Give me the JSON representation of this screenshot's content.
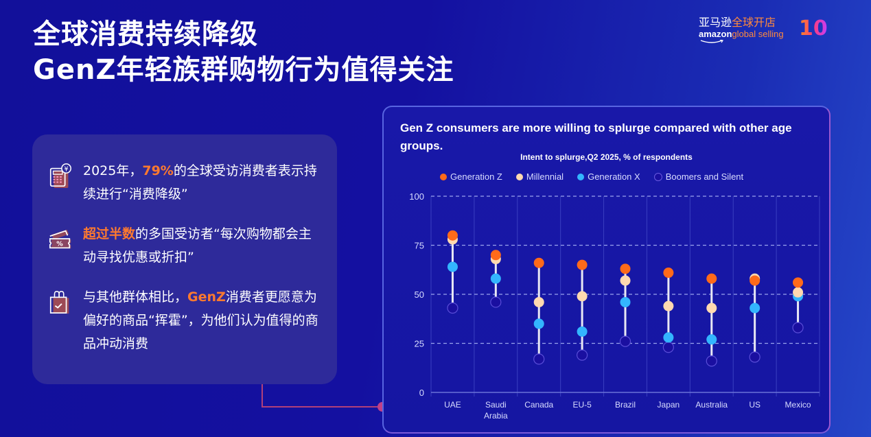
{
  "header": {
    "title_line1": "全球消费持续降级",
    "title_line2": "GenZ年轻族群购物行为值得关注"
  },
  "logo": {
    "cn_white": "亚马逊",
    "cn_orange": "全球开店",
    "en_white": "amazon",
    "en_orange": "global selling",
    "badge": "10"
  },
  "points": [
    {
      "icon": "calculator-yen-icon",
      "pre": "2025年，",
      "highlight": "79%",
      "post": "的全球受访消费者表示持续进行“消费降级”"
    },
    {
      "icon": "discount-coupon-icon",
      "pre": "",
      "highlight": "超过半数",
      "post": "的多国受访者“每次购物都会主动寻找优惠或折扣”"
    },
    {
      "icon": "shopping-bag-check-icon",
      "pre": "与其他群体相比，",
      "highlight": "GenZ",
      "post": "消费者更愿意为偏好的商品“挥霍”，为他们认为值得的商品冲动消费"
    }
  ],
  "colors": {
    "accent_orange": "#ff7a2e",
    "gen_z": "#ff6a1a",
    "millennial": "#ffd9b0",
    "gen_x": "#33b5ff",
    "boomers": "#1a0fa0"
  },
  "chart_data": {
    "type": "scatter",
    "subtype": "dot-range",
    "title": "Gen Z consumers are more willing to splurge compared with other age groups.",
    "subtitle": "Intent to splurge,Q2 2025, % of respondents",
    "xlabel": "",
    "ylabel": "",
    "ylim": [
      0,
      100
    ],
    "yticks": [
      0,
      25,
      50,
      75,
      100
    ],
    "grid": "horizontal dashed",
    "legend_position": "top",
    "categories": [
      "UAE",
      "Saudi Arabia",
      "Canada",
      "EU-5",
      "Brazil",
      "Japan",
      "Australia",
      "US",
      "Mexico"
    ],
    "series": [
      {
        "name": "Generation Z",
        "color": "#ff6a1a",
        "values": [
          80,
          70,
          66,
          65,
          63,
          61,
          58,
          57,
          56
        ]
      },
      {
        "name": "Millennial",
        "color": "#ffd9b0",
        "values": [
          78,
          68,
          46,
          49,
          57,
          44,
          43,
          58,
          51
        ]
      },
      {
        "name": "Generation X",
        "color": "#33b5ff",
        "values": [
          64,
          58,
          35,
          31,
          46,
          28,
          27,
          43,
          49
        ]
      },
      {
        "name": "Boomers and Silent",
        "color": "#1a0fa0",
        "values": [
          43,
          46,
          17,
          19,
          26,
          23,
          16,
          18,
          33
        ]
      }
    ]
  }
}
